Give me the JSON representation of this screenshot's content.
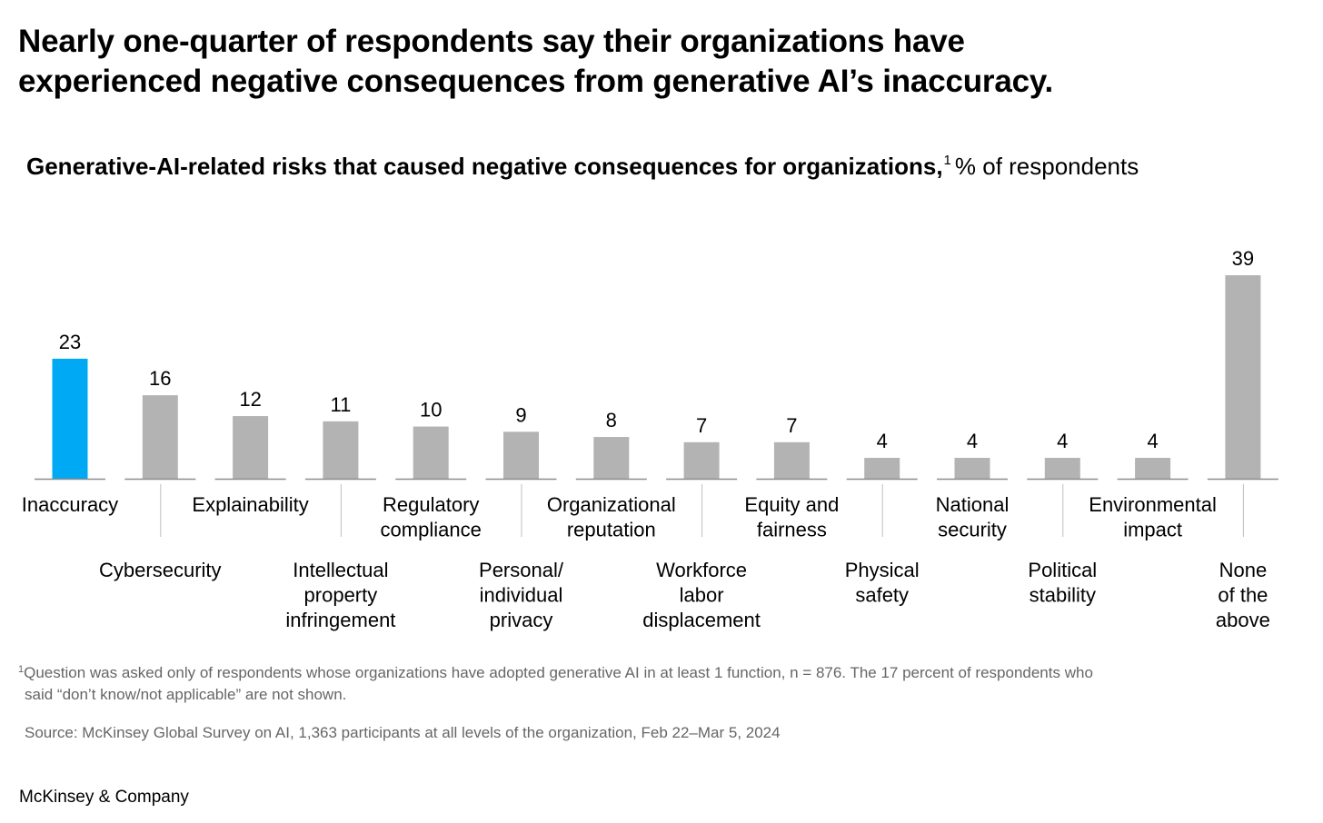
{
  "headline": {
    "line1": "Nearly one-quarter of respondents say their organizations have",
    "line2": "experienced negative consequences from generative AI’s inaccuracy."
  },
  "footnote": {
    "marker": "1",
    "line1": "Question was asked only of respondents whose organizations have adopted generative AI in at least 1 function, n = 876. The 17 percent of respondents who",
    "line2": "said “don’t know/not applicable” are not shown."
  },
  "source": "Source: McKinsey Global Survey on AI, 1,363 participants at all levels of the organization, Feb 22–Mar 5, 2024",
  "brand": "McKinsey & Company",
  "colors": {
    "highlight": "#00A9F4",
    "bar": "#B3B3B3",
    "axis": "#8C8C8C",
    "leader": "#BFBFBF",
    "text_muted": "#666666"
  },
  "chart_data": {
    "type": "bar",
    "title": "Generative-AI-related risks that caused negative consequences for organizations,",
    "title_footnote": "1",
    "unit": "% of respondents",
    "categories": [
      [
        "Inaccuracy"
      ],
      [
        "Cybersecurity"
      ],
      [
        "Explainability"
      ],
      [
        "Intellectual",
        "property",
        "infringement"
      ],
      [
        "Regulatory",
        "compliance"
      ],
      [
        "Personal/",
        "individual",
        "privacy"
      ],
      [
        "Organizational",
        "reputation"
      ],
      [
        "Workforce",
        "labor",
        "displacement"
      ],
      [
        "Equity and",
        "fairness"
      ],
      [
        "Physical",
        "safety"
      ],
      [
        "National",
        "security"
      ],
      [
        "Political",
        "stability"
      ],
      [
        "Environmental",
        "impact"
      ],
      [
        "None",
        "of the",
        "above"
      ]
    ],
    "values": [
      23,
      16,
      12,
      11,
      10,
      9,
      8,
      7,
      7,
      4,
      4,
      4,
      4,
      39
    ],
    "highlight_index": 0,
    "ylim": [
      0,
      39
    ],
    "grid": false,
    "legend": "none",
    "label_layout": "alternating"
  }
}
